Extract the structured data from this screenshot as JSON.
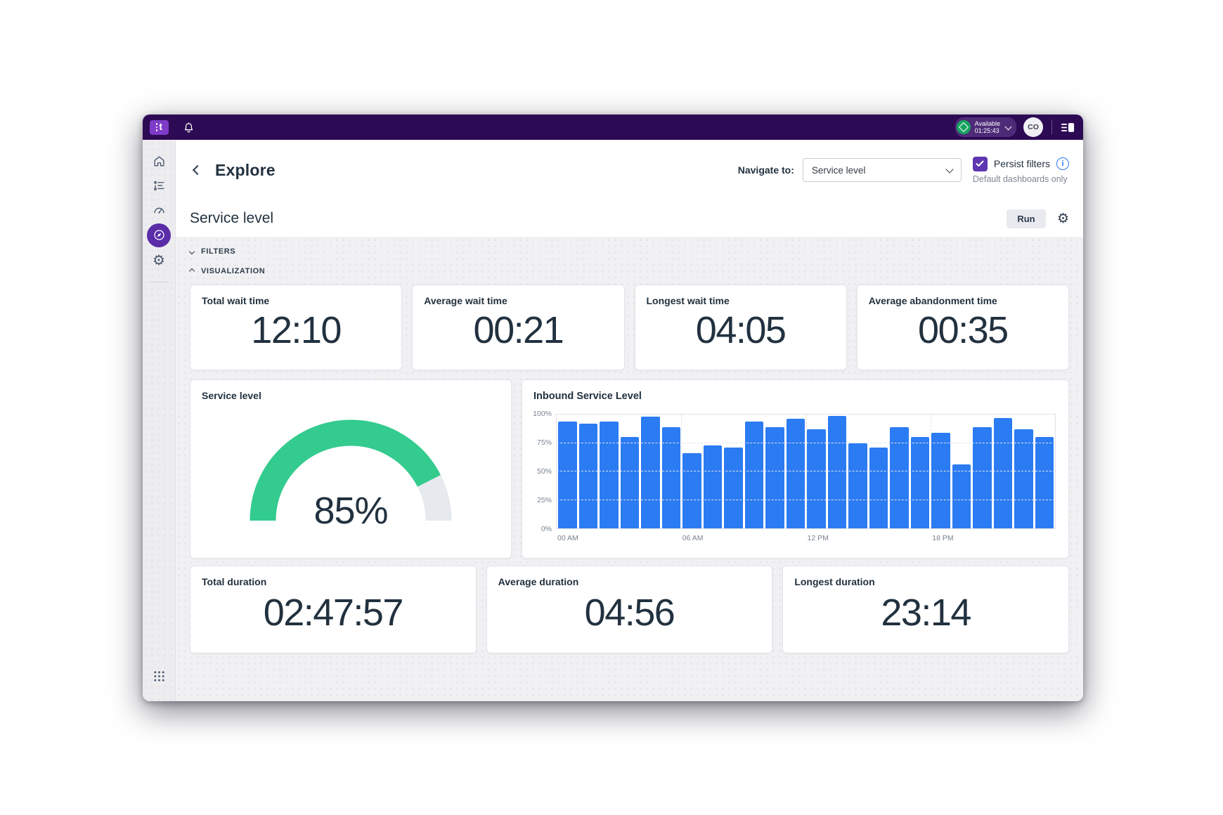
{
  "topbar": {
    "status": {
      "label": "Available",
      "timer": "01:25:43"
    },
    "avatar_initials": "CO"
  },
  "header": {
    "title": "Explore",
    "navigate_label": "Navigate to:",
    "navigate_value": "Service level",
    "persist_label": "Persist filters",
    "persist_checked": true,
    "persist_hint": "Default dashboards only"
  },
  "toolbar": {
    "report_title": "Service level",
    "run_label": "Run"
  },
  "sections": {
    "filters_label": "FILTERS",
    "visualization_label": "VISUALIZATION"
  },
  "metrics_top": [
    {
      "label": "Total wait time",
      "value": "12:10"
    },
    {
      "label": "Average wait time",
      "value": "00:21"
    },
    {
      "label": "Longest wait time",
      "value": "04:05"
    },
    {
      "label": "Average abandonment time",
      "value": "00:35"
    }
  ],
  "gauge": {
    "label": "Service level",
    "value": 85,
    "display": "85%",
    "color": "#33CB8E",
    "track_color": "#E6E9ED"
  },
  "chart_data": {
    "type": "bar",
    "title": "Inbound Service Level",
    "categories": [
      "00",
      "01",
      "02",
      "03",
      "04",
      "05",
      "06",
      "07",
      "08",
      "09",
      "10",
      "11",
      "12",
      "13",
      "14",
      "15",
      "16",
      "17",
      "18",
      "19",
      "20",
      "21",
      "22",
      "23"
    ],
    "values": [
      94,
      92,
      94,
      80,
      98,
      89,
      66,
      73,
      71,
      94,
      89,
      96,
      87,
      99,
      75,
      71,
      89,
      80,
      84,
      56,
      89,
      97,
      87,
      80
    ],
    "ylim": [
      0,
      100
    ],
    "ytick_values": [
      0,
      25,
      50,
      75,
      100
    ],
    "ytick_labels": [
      "0%",
      "25%",
      "50%",
      "75%",
      "100%"
    ],
    "xtick_hours": [
      0,
      6,
      12,
      18
    ],
    "xtick_labels": [
      "00 AM",
      "06 AM",
      "12 PM",
      "18 PM"
    ],
    "bar_color": "#2B7BF3",
    "grid": true,
    "legend": "none"
  },
  "metrics_bottom": [
    {
      "label": "Total duration",
      "value": "02:47:57"
    },
    {
      "label": "Average duration",
      "value": "04:56"
    },
    {
      "label": "Longest duration",
      "value": "23:14"
    }
  ],
  "colors": {
    "topbar_bg": "#2D0A54",
    "logo_tile": "#7D3BC8",
    "status_green": "#16A35F",
    "active_nav": "#5B2CA8",
    "checkbox_purple": "#5E35B1",
    "info_blue": "#2979F2",
    "bar_blue": "#2B7BF3",
    "gauge_green": "#33CB8E"
  },
  "icons": [
    "talkdesk-logo",
    "notification-bell-icon",
    "status-diamond-icon",
    "chevron-down-icon",
    "user-avatar",
    "panel-toggle-icon",
    "home-icon",
    "activity-list-icon",
    "dashboard-gauge-icon",
    "compass-icon",
    "settings-gear-icon",
    "app-launcher-waffle-icon",
    "chevron-left-icon",
    "checkmark-icon",
    "info-icon",
    "gear-icon",
    "chevron-up-icon"
  ]
}
